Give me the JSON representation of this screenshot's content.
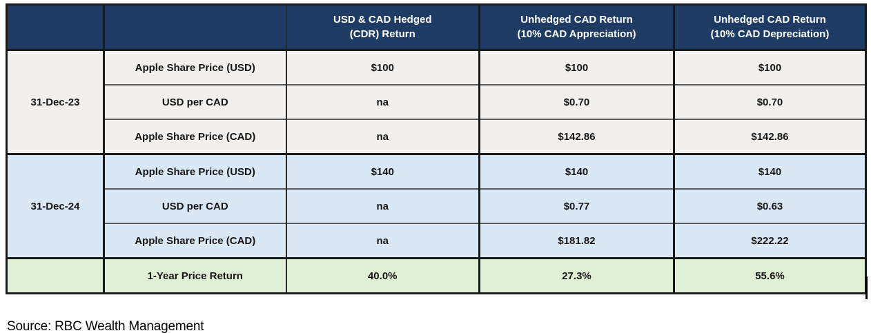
{
  "table": {
    "headers": [
      {
        "line1": "USD & CAD Hedged",
        "line2": "(CDR) Return"
      },
      {
        "line1": "Unhedged CAD Return",
        "line2": "(10% CAD Appreciation)"
      },
      {
        "line1": "Unhedged CAD Return",
        "line2": "(10% CAD Depreciation)"
      }
    ],
    "sections": [
      {
        "date": "31-Dec-23",
        "rows": [
          {
            "label": "Apple Share Price (USD)",
            "values": [
              "$100",
              "$100",
              "$100"
            ]
          },
          {
            "label": "USD per CAD",
            "values": [
              "na",
              "$0.70",
              "$0.70"
            ]
          },
          {
            "label": "Apple Share Price (CAD)",
            "values": [
              "na",
              "$142.86",
              "$142.86"
            ]
          }
        ]
      },
      {
        "date": "31-Dec-24",
        "rows": [
          {
            "label": "Apple Share Price (USD)",
            "values": [
              "$140",
              "$140",
              "$140"
            ]
          },
          {
            "label": "USD per CAD",
            "values": [
              "na",
              "$0.77",
              "$0.63"
            ]
          },
          {
            "label": "Apple Share Price (CAD)",
            "values": [
              "na",
              "$181.82",
              "$222.22"
            ]
          }
        ]
      }
    ],
    "summary": {
      "label": "1-Year Price Return",
      "values": [
        "40.0%",
        "27.3%",
        "55.6%"
      ]
    }
  },
  "source": "Source: RBC Wealth Management",
  "colors": {
    "header_bg": "#1e3c63",
    "header_text": "#ffffff",
    "section1_bg": "#f1f0ee",
    "section2_bg": "#dae8f5",
    "summary_bg": "#dff0d4",
    "border_dark": "#1a1a1a",
    "row_line": "#595959"
  }
}
